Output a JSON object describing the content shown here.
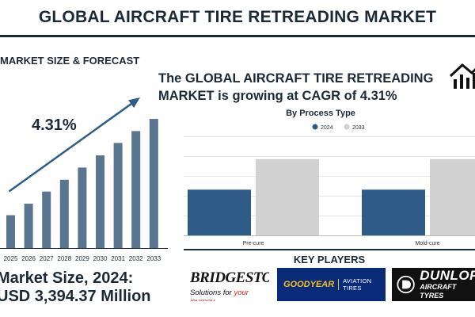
{
  "header": {
    "title": "GLOBAL AIRCRAFT TIRE RETREADING MARKET"
  },
  "left_panel": {
    "heading": "MARKET SIZE & FORECAST",
    "cagr_label": "4.31%",
    "market_size_line1": "Market Size, 2024:",
    "market_size_line2": "USD 3,394.37 Million"
  },
  "headline": "The GLOBAL AIRCRAFT TIRE RETREADING MARKET is growing at CAGR of 4.31%",
  "key_players": {
    "title": "KEY PLAYERS",
    "bridgestone": {
      "name": "BRIDGESTONE",
      "tagline_prefix": "Solutions for ",
      "tagline_highlight": "your journey"
    },
    "goodyear": {
      "name": "GOODYEAR",
      "sub": "AVIATION TIRES"
    },
    "dunlop": {
      "name": "DUNLOP",
      "sub": "AIRCRAFT TYRES"
    }
  },
  "colors": {
    "navy": "#1c2a38",
    "bar_blue": "#5a7590",
    "series_2024": "#2e5b88",
    "series_2033": "#d2d2d2"
  },
  "chart_data": [
    {
      "type": "bar",
      "title": "",
      "categories": [
        "2025",
        "2026",
        "2027",
        "2028",
        "2029",
        "2030",
        "2031",
        "2032",
        "2033"
      ],
      "values": [
        100,
        135,
        172,
        208,
        245,
        282,
        320,
        356,
        393
      ],
      "annotation": "4.31%",
      "ylim": [
        0,
        410
      ],
      "trend_arrow": true,
      "grid": false
    },
    {
      "type": "bar",
      "title": "By Process Type",
      "categories": [
        "Pre-cure",
        "Mold-cure"
      ],
      "series": [
        {
          "name": "2024",
          "values": [
            60,
            60
          ]
        },
        {
          "name": "2033",
          "values": [
            100,
            100
          ]
        }
      ],
      "ylim": [
        0,
        130
      ],
      "legend": "top-center",
      "grid": true
    }
  ]
}
